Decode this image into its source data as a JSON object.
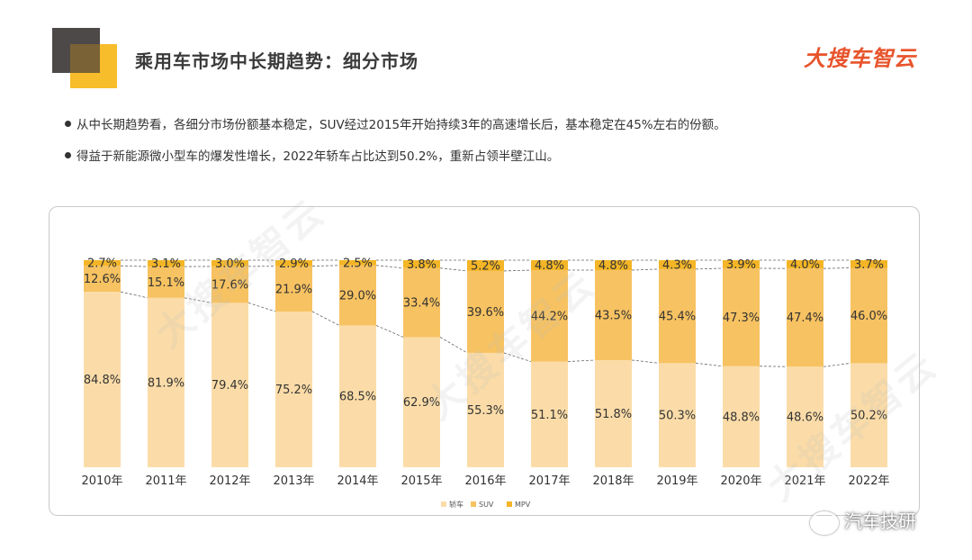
{
  "header": {
    "title": "乘用车市场中长期趋势：细分市场",
    "brand_logo": "大搜车智云"
  },
  "bullets": [
    "从中长期趋势看，各细分市场份额基本稳定，SUV经过2015年开始持续3年的高速增长后，基本稳定在45%左右的份额。",
    "得益于新能源微小型车的爆发性增长，2022年轿车占比达到50.2%，重新占领半壁江山。"
  ],
  "watermark_text": "大搜车智云",
  "footer": {
    "wechat_label": "汽车技研"
  },
  "colors": {
    "sedan": "#fbdca8",
    "suv": "#f7c261",
    "mpv": "#f4b526",
    "accent": "#e8542c",
    "deco_dark": "#4d4949",
    "deco_yellow": "#f7bd2a"
  },
  "chart_data": {
    "type": "bar",
    "stacked": true,
    "percent": true,
    "categories": [
      "2010年",
      "2011年",
      "2012年",
      "2013年",
      "2014年",
      "2015年",
      "2016年",
      "2017年",
      "2018年",
      "2019年",
      "2020年",
      "2021年",
      "2022年"
    ],
    "series": [
      {
        "name": "轿车",
        "values": [
          84.8,
          81.9,
          79.4,
          75.2,
          68.5,
          62.9,
          55.3,
          51.1,
          51.8,
          50.3,
          48.8,
          48.6,
          50.2
        ]
      },
      {
        "name": "SUV",
        "values": [
          12.6,
          15.1,
          17.6,
          21.9,
          29.0,
          33.4,
          39.6,
          44.2,
          43.5,
          45.4,
          47.3,
          47.4,
          46.0
        ]
      },
      {
        "name": "MPV",
        "values": [
          2.7,
          3.1,
          3.0,
          2.9,
          2.5,
          3.8,
          5.2,
          4.8,
          4.8,
          4.3,
          3.9,
          4.0,
          3.7
        ]
      }
    ],
    "legend_position": "bottom-center",
    "dashed_trend_lines": true,
    "grid": false
  }
}
